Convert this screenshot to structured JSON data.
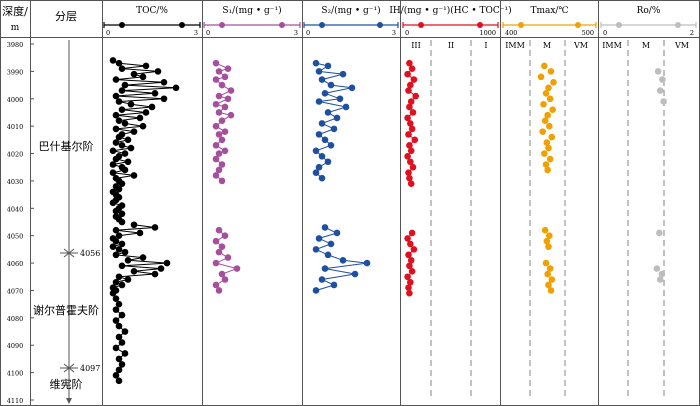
{
  "header": {
    "depth_label_line1": "深度/",
    "depth_label_line2": "m",
    "layer_label": "分层"
  },
  "depth_axis": {
    "min": 3980,
    "max": 4110,
    "step": 10,
    "ticks": [
      "3980",
      "3990",
      "4000",
      "4010",
      "4020",
      "4030",
      "4040",
      "4050",
      "4060",
      "4070",
      "4080",
      "4090",
      "4100",
      "4110"
    ]
  },
  "formations": [
    {
      "name": "巴什基尔阶",
      "boundary_depth_label": "4056"
    },
    {
      "name": "谢尔普霍夫阶",
      "boundary_depth_label": "4097"
    },
    {
      "name": "维宪阶"
    }
  ],
  "colors": {
    "toc": "#000000",
    "s1": "#a4509d",
    "s2": "#1f4fa0",
    "ig": "#e01020",
    "tmax": "#f0a000",
    "ro": "#bdbdbd",
    "dash": "#9a9a9a",
    "grid": "#555555"
  },
  "chart_data": [
    {
      "type": "scatter",
      "title": "TOC/%",
      "xlabel": "TOC/%",
      "xlim": [
        0,
        3
      ],
      "x_tick_labels": [
        "0",
        "3"
      ],
      "series": [
        {
          "name": "above 4045",
          "depth": [
            3986,
            3987,
            3988,
            3989,
            3990,
            3991,
            3992,
            3993,
            3994,
            3995,
            3996,
            3997,
            3998,
            3999,
            4000,
            4001,
            4002,
            4003,
            4004,
            4005,
            4006,
            4007,
            4008,
            4009,
            4010,
            4011,
            4012,
            4013,
            4014,
            4015,
            4016,
            4017,
            4018,
            4019,
            4020,
            4021,
            4022,
            4023,
            4024,
            4025,
            4026,
            4027,
            4028,
            4029,
            4030,
            4031,
            4032,
            4033,
            4034,
            4035,
            4036,
            4037,
            4038,
            4039,
            4040,
            4041,
            4042,
            4043,
            4044,
            4045
          ],
          "toc": [
            0.2,
            0.4,
            1.3,
            0.5,
            1.7,
            0.9,
            1.2,
            0.3,
            1.9,
            0.6,
            2.3,
            0.5,
            1.6,
            0.3,
            1.9,
            0.4,
            0.8,
            1.5,
            0.5,
            1.3,
            0.3,
            1.1,
            0.4,
            0.6,
            1.2,
            0.3,
            0.9,
            0.5,
            0.4,
            0.7,
            0.3,
            0.5,
            0.8,
            0.2,
            0.6,
            0.4,
            0.3,
            0.7,
            0.2,
            0.5,
            0.6,
            0.2,
            0.9,
            0.3,
            0.4,
            0.5,
            0.3,
            0.4,
            0.2,
            0.3,
            0.4,
            0.3,
            0.2,
            0.5,
            0.4,
            0.3,
            0.5,
            0.3,
            0.4,
            0.5
          ]
        },
        {
          "name": "4045-4070",
          "depth": [
            4046,
            4047,
            4048,
            4049,
            4050,
            4051,
            4052,
            4053,
            4054,
            4055,
            4056,
            4057,
            4058,
            4059,
            4060,
            4061,
            4062,
            4063,
            4064,
            4065,
            4066,
            4067,
            4068,
            4069,
            4070
          ],
          "toc": [
            0.9,
            1.6,
            0.3,
            1.1,
            0.4,
            0.2,
            0.3,
            0.5,
            0.2,
            0.4,
            0.6,
            0.3,
            1.2,
            0.7,
            2.0,
            0.5,
            1.8,
            0.9,
            1.6,
            0.4,
            0.7,
            0.3,
            0.5,
            0.2,
            0.3
          ]
        },
        {
          "name": "below 4070",
          "depth": [
            4071,
            4073,
            4075,
            4077,
            4079,
            4081,
            4083,
            4085,
            4087,
            4089,
            4091,
            4093,
            4095,
            4097,
            4099,
            4101,
            4103
          ],
          "toc": [
            0.2,
            0.3,
            0.4,
            0.3,
            0.5,
            0.3,
            0.4,
            0.6,
            0.4,
            0.5,
            0.3,
            0.6,
            0.4,
            0.5,
            0.4,
            0.3,
            0.4
          ]
        }
      ]
    },
    {
      "type": "scatter",
      "title": "S1/(mg·g⁻¹)",
      "xlabel": "S₁/(mg • g⁻¹)",
      "xlim": [
        0,
        3
      ],
      "x_tick_labels": [
        "0",
        "3"
      ],
      "depth": [
        3987,
        3989,
        3990,
        3992,
        3993,
        3995,
        3997,
        3999,
        4000,
        4002,
        4003,
        4005,
        4006,
        4008,
        4010,
        4012,
        4013,
        4015,
        4017,
        4019,
        4020,
        4022,
        4024,
        4026,
        4028,
        4030,
        4048,
        4050,
        4052,
        4054,
        4056,
        4058,
        4060,
        4062,
        4064,
        4066,
        4068,
        4070
      ],
      "s1": [
        0.3,
        0.7,
        0.4,
        0.6,
        0.3,
        0.5,
        0.8,
        0.4,
        0.7,
        0.3,
        0.6,
        0.4,
        0.8,
        0.5,
        0.3,
        0.6,
        0.4,
        0.5,
        0.3,
        0.6,
        0.4,
        0.3,
        0.5,
        0.4,
        0.3,
        0.5,
        0.4,
        0.6,
        0.3,
        0.5,
        0.4,
        0.7,
        0.3,
        1.0,
        0.5,
        0.6,
        0.3,
        0.4
      ]
    },
    {
      "type": "scatter",
      "title": "S2/(mg·g⁻¹)",
      "xlabel": "S₂/(mg • g⁻¹)",
      "xlim": [
        0,
        3
      ],
      "x_tick_labels": [
        "0",
        "3"
      ],
      "depth": [
        3987,
        3988,
        3990,
        3991,
        3993,
        3995,
        3996,
        3998,
        4000,
        4001,
        4003,
        4005,
        4007,
        4009,
        4011,
        4013,
        4015,
        4017,
        4019,
        4021,
        4023,
        4025,
        4027,
        4029,
        4047,
        4049,
        4051,
        4053,
        4055,
        4057,
        4059,
        4060,
        4062,
        4064,
        4066,
        4068,
        4070
      ],
      "s2": [
        0.3,
        0.7,
        0.4,
        1.2,
        0.5,
        0.8,
        1.5,
        0.6,
        1.1,
        0.4,
        1.3,
        0.7,
        1.0,
        0.5,
        0.9,
        0.4,
        0.6,
        0.8,
        0.3,
        0.5,
        0.7,
        0.4,
        0.3,
        0.5,
        0.6,
        1.0,
        0.4,
        0.8,
        0.3,
        0.7,
        1.2,
        2.0,
        0.6,
        1.6,
        0.5,
        0.9,
        0.3
      ]
    },
    {
      "type": "scatter",
      "title": "IH/(mg·g⁻¹)(HC·TOC⁻¹)",
      "xlabel": "IH/(mg • g⁻¹)(HC • TOC⁻¹)",
      "xlim": [
        0,
        1000
      ],
      "x_tick_labels": [
        "0",
        "1000"
      ],
      "zone_labels": [
        "III",
        "II",
        "I"
      ],
      "depth": [
        3987,
        3989,
        3991,
        3993,
        3995,
        3997,
        3999,
        4001,
        4003,
        4005,
        4007,
        4009,
        4011,
        4013,
        4015,
        4017,
        4019,
        4021,
        4023,
        4025,
        4027,
        4029,
        4031,
        4049,
        4051,
        4053,
        4055,
        4057,
        4059,
        4061,
        4063,
        4065,
        4067,
        4069,
        4071
      ],
      "ih": [
        60,
        90,
        40,
        110,
        70,
        50,
        130,
        80,
        60,
        100,
        40,
        70,
        90,
        50,
        120,
        60,
        80,
        40,
        70,
        100,
        50,
        60,
        80,
        90,
        40,
        70,
        110,
        50,
        80,
        60,
        90,
        40,
        70,
        50,
        60
      ]
    },
    {
      "type": "scatter",
      "title": "Tmax/℃",
      "xlabel": "Tmax/℃",
      "xlim": [
        400,
        500
      ],
      "x_tick_labels": [
        "400",
        "500"
      ],
      "zone_labels": [
        "IMM",
        "M",
        "VM"
      ],
      "depth": [
        3988,
        3990,
        3992,
        3994,
        3996,
        3998,
        4000,
        4002,
        4004,
        4006,
        4008,
        4010,
        4012,
        4014,
        4016,
        4018,
        4020,
        4022,
        4024,
        4026,
        4048,
        4050,
        4052,
        4054,
        4060,
        4062,
        4064,
        4066,
        4068,
        4070
      ],
      "tmax": [
        445,
        453,
        441,
        456,
        450,
        447,
        452,
        444,
        455,
        449,
        446,
        451,
        443,
        454,
        448,
        450,
        445,
        452,
        447,
        449,
        446,
        451,
        448,
        450,
        447,
        452,
        449,
        454,
        450,
        453
      ]
    },
    {
      "type": "scatter",
      "title": "Ro/%",
      "xlabel": "Ro/%",
      "xlim": [
        0,
        2
      ],
      "x_tick_labels": [
        "0",
        "2"
      ],
      "zone_labels": [
        "IMM",
        "M",
        "VM"
      ],
      "depth": [
        3990,
        3993,
        3997,
        4001,
        4049,
        4062,
        4064,
        4066
      ],
      "ro": [
        1.25,
        1.35,
        1.3,
        1.38,
        1.28,
        1.22,
        1.34,
        1.3
      ]
    }
  ]
}
